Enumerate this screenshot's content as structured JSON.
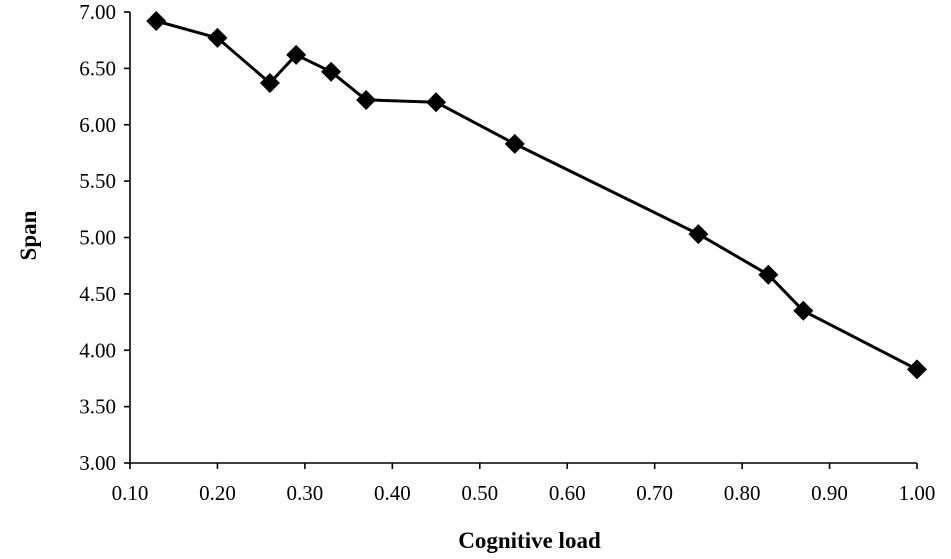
{
  "chart_data": {
    "type": "line",
    "title": "",
    "xlabel": "Cognitive load",
    "ylabel": "Span",
    "xlim": [
      0.1,
      1.0
    ],
    "ylim": [
      3.0,
      7.0
    ],
    "x_ticks": [
      "0.10",
      "0.20",
      "0.30",
      "0.40",
      "0.50",
      "0.60",
      "0.70",
      "0.80",
      "0.90",
      "1.00"
    ],
    "y_ticks": [
      "3.00",
      "3.50",
      "4.00",
      "4.50",
      "5.00",
      "5.50",
      "6.00",
      "6.50",
      "7.00"
    ],
    "grid": false,
    "legend": "none",
    "marker": "diamond",
    "colors": {
      "line": "#000000",
      "marker": "#000000",
      "axis": "#000000"
    },
    "series": [
      {
        "points": [
          {
            "x": 0.13,
            "y": 6.92
          },
          {
            "x": 0.2,
            "y": 6.77
          },
          {
            "x": 0.26,
            "y": 6.37
          },
          {
            "x": 0.29,
            "y": 6.62
          },
          {
            "x": 0.33,
            "y": 6.47
          },
          {
            "x": 0.37,
            "y": 6.22
          },
          {
            "x": 0.45,
            "y": 6.2
          },
          {
            "x": 0.54,
            "y": 5.83
          },
          {
            "x": 0.75,
            "y": 5.03
          },
          {
            "x": 0.83,
            "y": 4.67
          },
          {
            "x": 0.87,
            "y": 4.35
          },
          {
            "x": 1.0,
            "y": 3.83
          }
        ]
      }
    ]
  }
}
